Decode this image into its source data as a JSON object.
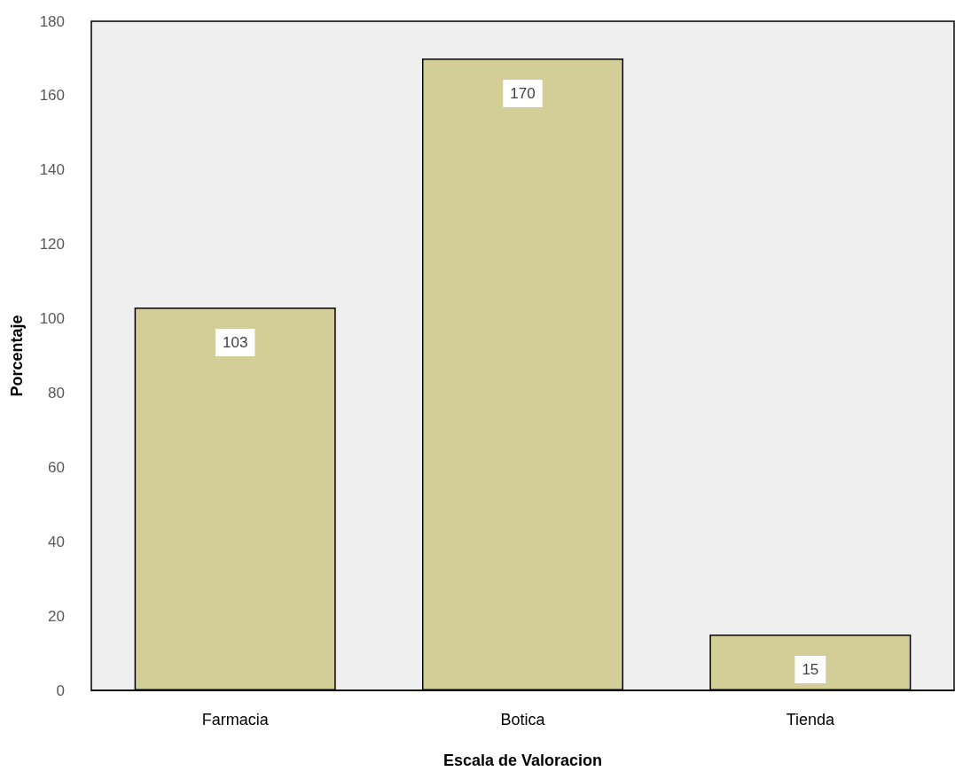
{
  "chart_data": {
    "type": "bar",
    "xlabel": "Escala de Valoracion",
    "ylabel": "Porcentaje",
    "categories": [
      "Farmacia",
      "Botica",
      "Tienda"
    ],
    "values": [
      103,
      170,
      15
    ],
    "color": "#d3ce98",
    "ylim": [
      0,
      180
    ],
    "yticks": [
      0,
      20,
      40,
      60,
      80,
      100,
      120,
      140,
      160,
      180
    ],
    "data_labels": true
  }
}
